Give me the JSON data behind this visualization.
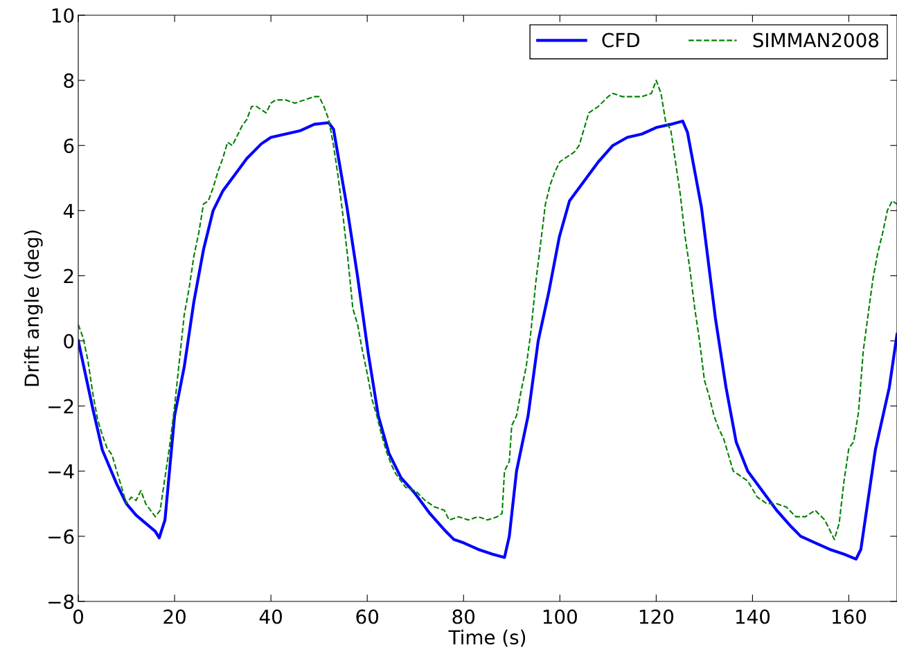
{
  "chart_data": {
    "type": "line",
    "xlabel": "Time (s)",
    "ylabel": "Drift angle (deg)",
    "xlim": [
      0,
      170
    ],
    "ylim": [
      -8,
      10
    ],
    "xticks": [
      0,
      20,
      40,
      60,
      80,
      100,
      120,
      140,
      160
    ],
    "yticks": [
      -8,
      -6,
      -4,
      -2,
      0,
      2,
      4,
      6,
      8,
      10
    ],
    "grid": false,
    "legend": "top right",
    "marker": "none",
    "series": [
      {
        "name": "CFD",
        "color": "#0000ff",
        "line_style": "solid",
        "x": [
          0,
          3,
          5,
          8,
          10,
          12,
          14,
          16,
          16.8,
          18,
          20,
          22,
          24,
          26,
          28,
          30,
          32,
          35,
          38,
          40,
          43,
          46,
          49,
          52,
          53,
          55.8,
          58,
          60.2,
          62.3,
          64.5,
          67,
          70,
          73,
          76,
          78,
          80,
          83,
          86,
          88.5,
          89.5,
          91,
          93.4,
          95.5,
          97.7,
          99.9,
          102,
          105,
          108,
          111,
          114,
          117,
          120,
          123,
          125.5,
          126.5,
          129.4,
          132.3,
          134.5,
          136.6,
          139,
          142,
          145,
          148,
          150,
          153,
          156,
          159,
          161.5,
          162.5,
          165.5,
          168.4,
          170
        ],
        "values": [
          0,
          -2.07,
          -3.35,
          -4.4,
          -5.0,
          -5.35,
          -5.6,
          -5.85,
          -6.05,
          -5.5,
          -2.3,
          -0.8,
          1.2,
          2.8,
          4.0,
          4.6,
          5.0,
          5.6,
          6.05,
          6.25,
          6.35,
          6.45,
          6.65,
          6.7,
          6.5,
          4.1,
          1.97,
          -0.37,
          -2.3,
          -3.45,
          -4.2,
          -4.7,
          -5.3,
          -5.8,
          -6.1,
          -6.2,
          -6.4,
          -6.55,
          -6.65,
          -6.0,
          -4.0,
          -2.3,
          0.0,
          1.5,
          3.2,
          4.3,
          4.9,
          5.5,
          6.0,
          6.25,
          6.35,
          6.55,
          6.65,
          6.75,
          6.4,
          4.1,
          0.69,
          -1.43,
          -3.1,
          -4.0,
          -4.6,
          -5.2,
          -5.7,
          -6.0,
          -6.2,
          -6.4,
          -6.55,
          -6.7,
          -6.4,
          -3.35,
          -1.43,
          0.2
        ]
      },
      {
        "name": "SIMMAN2008",
        "color": "#008000",
        "line_style": "dashed",
        "x": [
          0,
          1,
          2,
          3,
          4,
          5,
          6,
          7,
          8,
          9,
          10,
          11,
          12,
          13,
          14,
          15,
          16,
          17,
          18,
          19,
          20,
          21,
          22,
          23,
          24,
          25,
          26,
          27,
          28,
          29,
          30,
          31,
          32,
          33,
          34,
          35,
          36,
          37,
          38,
          39,
          40,
          41,
          43,
          45,
          47,
          49,
          50,
          51,
          52,
          53,
          54,
          55,
          56,
          57,
          58,
          59,
          60,
          61,
          62,
          63,
          64,
          65,
          66,
          67,
          68,
          70,
          72,
          74,
          76,
          77,
          79,
          81,
          83,
          85,
          87,
          88,
          88.5,
          89.5,
          90,
          91,
          92,
          93,
          94,
          95,
          96,
          97,
          98,
          99,
          100,
          101,
          103,
          104,
          105,
          106,
          107,
          108,
          110,
          111,
          113,
          115,
          117,
          119,
          120,
          121,
          122,
          123,
          124,
          125,
          126,
          127,
          128,
          129,
          130,
          131,
          132,
          133,
          134,
          135,
          136,
          137,
          139,
          141,
          143,
          145,
          147,
          149,
          151,
          153,
          155,
          156,
          157,
          158,
          159,
          160,
          161,
          162,
          163,
          164,
          165,
          166,
          167,
          168,
          169,
          170
        ],
        "values": [
          0.5,
          0.1,
          -0.6,
          -1.6,
          -2.4,
          -2.9,
          -3.3,
          -3.5,
          -4.0,
          -4.5,
          -5.0,
          -4.8,
          -4.9,
          -4.6,
          -5.0,
          -5.2,
          -5.4,
          -5.2,
          -4.2,
          -3.2,
          -2.0,
          -0.6,
          0.8,
          1.6,
          2.6,
          3.3,
          4.2,
          4.3,
          4.7,
          5.2,
          5.6,
          6.1,
          6.0,
          6.3,
          6.6,
          6.8,
          7.2,
          7.2,
          7.1,
          7.0,
          7.3,
          7.4,
          7.4,
          7.3,
          7.4,
          7.5,
          7.5,
          7.2,
          6.8,
          6.0,
          5.0,
          3.8,
          2.5,
          1.0,
          0.5,
          -0.3,
          -1.0,
          -1.8,
          -2.3,
          -2.9,
          -3.4,
          -3.8,
          -4.1,
          -4.3,
          -4.5,
          -4.6,
          -4.9,
          -5.1,
          -5.2,
          -5.5,
          -5.4,
          -5.5,
          -5.4,
          -5.5,
          -5.4,
          -5.3,
          -4.0,
          -3.7,
          -2.6,
          -2.3,
          -1.5,
          -0.8,
          0.3,
          1.8,
          3.0,
          4.2,
          4.8,
          5.2,
          5.5,
          5.6,
          5.8,
          6.0,
          6.5,
          7.0,
          7.1,
          7.2,
          7.5,
          7.6,
          7.5,
          7.5,
          7.5,
          7.6,
          8.0,
          7.6,
          6.7,
          6.5,
          5.5,
          4.5,
          3.2,
          2.2,
          1.0,
          0.0,
          -1.2,
          -1.7,
          -2.3,
          -2.7,
          -3.0,
          -3.5,
          -4.0,
          -4.1,
          -4.3,
          -4.8,
          -5.0,
          -5.0,
          -5.1,
          -5.4,
          -5.4,
          -5.2,
          -5.5,
          -5.8,
          -6.1,
          -5.6,
          -4.3,
          -3.3,
          -3.1,
          -2.2,
          -0.3,
          0.8,
          1.9,
          2.7,
          3.3,
          4.0,
          4.3,
          4.2
        ]
      }
    ]
  }
}
